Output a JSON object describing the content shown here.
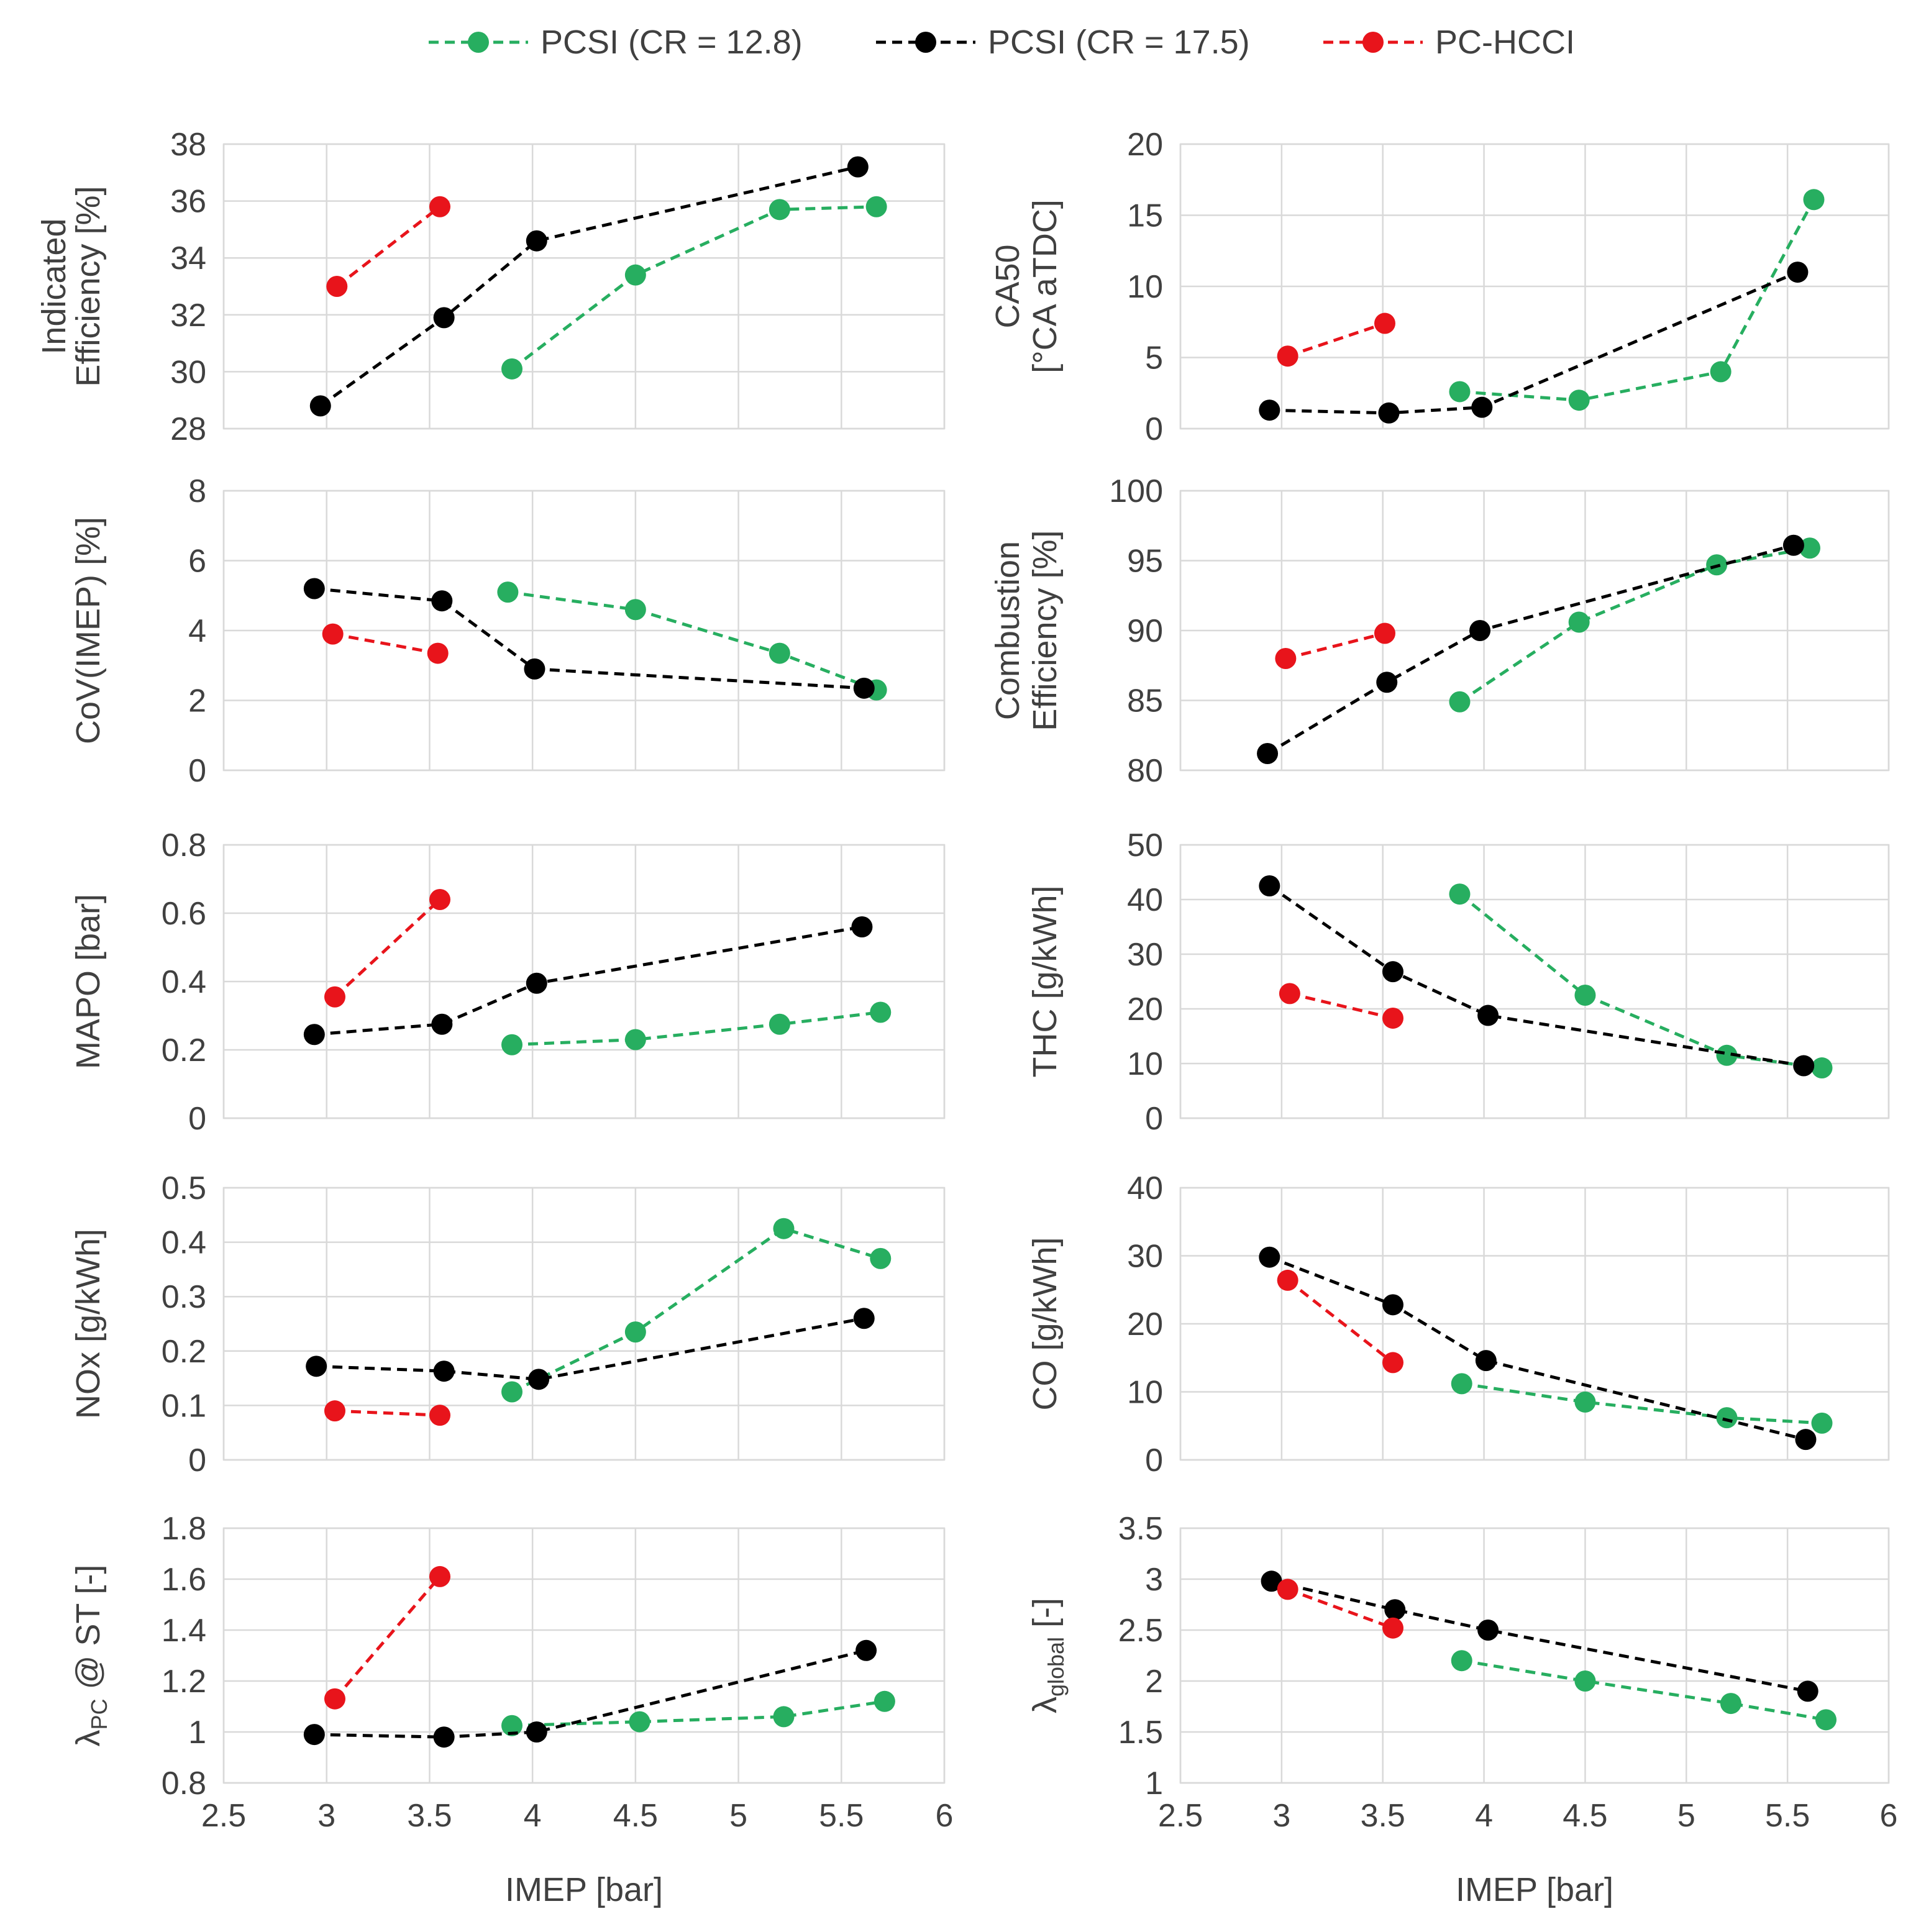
{
  "colors": {
    "green": "#27ae60",
    "black": "#000000",
    "red": "#e8141b"
  },
  "legend": [
    {
      "key": "green",
      "label": "PCSI (CR = 12.8)"
    },
    {
      "key": "black",
      "label": "PCSI (CR = 17.5)"
    },
    {
      "key": "red",
      "label": "PC-HCCI"
    }
  ],
  "chart_data": [
    {
      "type": "line",
      "panel": "top-left",
      "ylim": [
        28,
        38
      ],
      "yticks": [
        "28",
        "30",
        "32",
        "34",
        "36",
        "38"
      ],
      "ylabel": [
        "Indicated",
        "Efficiency [%]"
      ],
      "xlim": [
        2.5,
        6
      ],
      "xticks": [
        "2.5",
        "3",
        "3.5",
        "4",
        "4.5",
        "5",
        "5.5",
        "6"
      ],
      "xlabel": "",
      "series": [
        {
          "name": "PCSI (CR = 12.8)",
          "color": "green",
          "x": [
            3.9,
            4.5,
            5.2,
            5.67
          ],
          "y": [
            30.1,
            33.4,
            35.7,
            35.8
          ]
        },
        {
          "name": "PCSI (CR = 17.5)",
          "color": "black",
          "x": [
            2.97,
            3.57,
            4.02,
            5.58
          ],
          "y": [
            28.8,
            31.9,
            34.6,
            37.2
          ]
        },
        {
          "name": "PC-HCCI",
          "color": "red",
          "x": [
            3.05,
            3.55
          ],
          "y": [
            33.0,
            35.8
          ]
        }
      ]
    },
    {
      "type": "line",
      "panel": "top-right",
      "ylim": [
        0,
        20
      ],
      "yticks": [
        "0",
        "5",
        "10",
        "15",
        "20"
      ],
      "ylabel": [
        "CA50",
        "[°CA aTDC]"
      ],
      "xlim": [
        2.5,
        6
      ],
      "xticks": [
        "2.5",
        "3",
        "3.5",
        "4",
        "4.5",
        "5",
        "5.5",
        "6"
      ],
      "xlabel": "",
      "series": [
        {
          "name": "PCSI (CR = 12.8)",
          "color": "green",
          "x": [
            3.88,
            4.47,
            5.17,
            5.63
          ],
          "y": [
            2.6,
            2.0,
            4.0,
            16.1
          ]
        },
        {
          "name": "PCSI (CR = 17.5)",
          "color": "black",
          "x": [
            2.94,
            3.53,
            3.99,
            5.55
          ],
          "y": [
            1.3,
            1.1,
            1.5,
            11.0
          ]
        },
        {
          "name": "PC-HCCI",
          "color": "red",
          "x": [
            3.03,
            3.51
          ],
          "y": [
            5.1,
            7.4
          ]
        }
      ]
    },
    {
      "type": "line",
      "panel": "row2-left",
      "ylim": [
        0,
        8
      ],
      "yticks": [
        "0",
        "2",
        "4",
        "6",
        "8"
      ],
      "ylabel": [
        "CoV(IMEP) [%]"
      ],
      "xlim": [
        2.5,
        6
      ],
      "xticks": [
        "2.5",
        "3",
        "3.5",
        "4",
        "4.5",
        "5",
        "5.5",
        "6"
      ],
      "xlabel": "",
      "series": [
        {
          "name": "PCSI (CR = 12.8)",
          "color": "green",
          "x": [
            3.88,
            4.5,
            5.2,
            5.67
          ],
          "y": [
            5.1,
            4.6,
            3.35,
            2.3
          ]
        },
        {
          "name": "PCSI (CR = 17.5)",
          "color": "black",
          "x": [
            2.94,
            3.56,
            4.01,
            5.61
          ],
          "y": [
            5.2,
            4.85,
            2.9,
            2.35
          ]
        },
        {
          "name": "PC-HCCI",
          "color": "red",
          "x": [
            3.03,
            3.54
          ],
          "y": [
            3.9,
            3.35
          ]
        }
      ]
    },
    {
      "type": "line",
      "panel": "row2-right",
      "ylim": [
        80,
        100
      ],
      "yticks": [
        "80",
        "85",
        "90",
        "95",
        "100"
      ],
      "ylabel": [
        "Combustion",
        "Efficiency [%]"
      ],
      "xlim": [
        2.5,
        6
      ],
      "xticks": [
        "2.5",
        "3",
        "3.5",
        "4",
        "4.5",
        "5",
        "5.5",
        "6"
      ],
      "xlabel": "",
      "series": [
        {
          "name": "PCSI (CR = 12.8)",
          "color": "green",
          "x": [
            3.88,
            4.47,
            5.15,
            5.61
          ],
          "y": [
            84.9,
            90.6,
            94.7,
            95.9
          ]
        },
        {
          "name": "PCSI (CR = 17.5)",
          "color": "black",
          "x": [
            2.93,
            3.52,
            3.98,
            5.53
          ],
          "y": [
            81.2,
            86.3,
            90.0,
            96.1
          ]
        },
        {
          "name": "PC-HCCI",
          "color": "red",
          "x": [
            3.02,
            3.51
          ],
          "y": [
            88.0,
            89.8
          ]
        }
      ]
    },
    {
      "type": "line",
      "panel": "row3-left",
      "ylim": [
        0,
        0.8
      ],
      "yticks": [
        "0",
        "0.2",
        "0.4",
        "0.6",
        "0.8"
      ],
      "ylabel": [
        "MAPO [bar]"
      ],
      "xlim": [
        2.5,
        6
      ],
      "xticks": [
        "2.5",
        "3",
        "3.5",
        "4",
        "4.5",
        "5",
        "5.5",
        "6"
      ],
      "xlabel": "",
      "series": [
        {
          "name": "PCSI (CR = 12.8)",
          "color": "green",
          "x": [
            3.9,
            4.5,
            5.2,
            5.69
          ],
          "y": [
            0.215,
            0.23,
            0.275,
            0.31
          ]
        },
        {
          "name": "PCSI (CR = 17.5)",
          "color": "black",
          "x": [
            2.94,
            3.56,
            4.02,
            5.6
          ],
          "y": [
            0.245,
            0.275,
            0.395,
            0.56
          ]
        },
        {
          "name": "PC-HCCI",
          "color": "red",
          "x": [
            3.04,
            3.55
          ],
          "y": [
            0.355,
            0.64
          ]
        }
      ]
    },
    {
      "type": "line",
      "panel": "row3-right",
      "ylim": [
        0,
        50
      ],
      "yticks": [
        "0",
        "10",
        "20",
        "30",
        "40",
        "50"
      ],
      "ylabel": [
        "THC [g/kWh]"
      ],
      "xlim": [
        2.5,
        6
      ],
      "xticks": [
        "2.5",
        "3",
        "3.5",
        "4",
        "4.5",
        "5",
        "5.5",
        "6"
      ],
      "xlabel": "",
      "series": [
        {
          "name": "PCSI (CR = 12.8)",
          "color": "green",
          "x": [
            3.88,
            4.5,
            5.2,
            5.67
          ],
          "y": [
            41.0,
            22.5,
            11.5,
            9.2
          ]
        },
        {
          "name": "PCSI (CR = 17.5)",
          "color": "black",
          "x": [
            2.94,
            3.55,
            4.02,
            5.58
          ],
          "y": [
            42.5,
            26.8,
            18.8,
            9.6
          ]
        },
        {
          "name": "PC-HCCI",
          "color": "red",
          "x": [
            3.04,
            3.55
          ],
          "y": [
            22.8,
            18.3
          ]
        }
      ]
    },
    {
      "type": "line",
      "panel": "row4-left",
      "ylim": [
        0,
        0.5
      ],
      "yticks": [
        "0",
        "0.1",
        "0.2",
        "0.3",
        "0.4",
        "0.5"
      ],
      "ylabel": [
        "NOx [g/kWh]"
      ],
      "xlim": [
        2.5,
        6
      ],
      "xticks": [
        "2.5",
        "3",
        "3.5",
        "4",
        "4.5",
        "5",
        "5.5",
        "6"
      ],
      "xlabel": "",
      "series": [
        {
          "name": "PCSI (CR = 12.8)",
          "color": "green",
          "x": [
            3.9,
            4.5,
            5.22,
            5.69
          ],
          "y": [
            0.125,
            0.235,
            0.425,
            0.37
          ]
        },
        {
          "name": "PCSI (CR = 17.5)",
          "color": "black",
          "x": [
            2.95,
            3.57,
            4.03,
            5.61
          ],
          "y": [
            0.172,
            0.163,
            0.148,
            0.26
          ]
        },
        {
          "name": "PC-HCCI",
          "color": "red",
          "x": [
            3.04,
            3.55
          ],
          "y": [
            0.09,
            0.082
          ]
        }
      ]
    },
    {
      "type": "line",
      "panel": "row4-right",
      "ylim": [
        0,
        40
      ],
      "yticks": [
        "0",
        "10",
        "20",
        "30",
        "40"
      ],
      "ylabel": [
        "CO [g/kWh]"
      ],
      "xlim": [
        2.5,
        6
      ],
      "xticks": [
        "2.5",
        "3",
        "3.5",
        "4",
        "4.5",
        "5",
        "5.5",
        "6"
      ],
      "xlabel": "",
      "series": [
        {
          "name": "PCSI (CR = 12.8)",
          "color": "green",
          "x": [
            3.89,
            4.5,
            5.2,
            5.67
          ],
          "y": [
            11.2,
            8.5,
            6.2,
            5.4
          ]
        },
        {
          "name": "PCSI (CR = 17.5)",
          "color": "black",
          "x": [
            2.94,
            3.55,
            4.01,
            5.59
          ],
          "y": [
            29.8,
            22.8,
            14.6,
            3.0
          ]
        },
        {
          "name": "PC-HCCI",
          "color": "red",
          "x": [
            3.03,
            3.55
          ],
          "y": [
            26.4,
            14.3
          ]
        }
      ]
    },
    {
      "type": "line",
      "panel": "bottom-left",
      "ylim": [
        0.8,
        1.8
      ],
      "yticks": [
        "0.8",
        "1",
        "1.2",
        "1.4",
        "1.6",
        "1.8"
      ],
      "ylabel": [
        "λPC @ ST [-]"
      ],
      "xlim": [
        2.5,
        6
      ],
      "xticks": [
        "2.5",
        "3",
        "3.5",
        "4",
        "4.5",
        "5",
        "5.5",
        "6"
      ],
      "xlabel": "IMEP [bar]",
      "series": [
        {
          "name": "PCSI (CR = 12.8)",
          "color": "green",
          "x": [
            3.9,
            4.52,
            5.22,
            5.71
          ],
          "y": [
            1.025,
            1.04,
            1.06,
            1.12
          ]
        },
        {
          "name": "PCSI (CR = 17.5)",
          "color": "black",
          "x": [
            2.94,
            3.57,
            4.02,
            5.62
          ],
          "y": [
            0.99,
            0.98,
            1.0,
            1.32
          ]
        },
        {
          "name": "PC-HCCI",
          "color": "red",
          "x": [
            3.04,
            3.55
          ],
          "y": [
            1.13,
            1.61
          ]
        }
      ]
    },
    {
      "type": "line",
      "panel": "bottom-right",
      "ylim": [
        1,
        3.5
      ],
      "yticks": [
        "1",
        "1.5",
        "2",
        "2.5",
        "3",
        "3.5"
      ],
      "ylabel": [
        "λglobal [-]"
      ],
      "xlim": [
        2.5,
        6
      ],
      "xticks": [
        "2.5",
        "3",
        "3.5",
        "4",
        "4.5",
        "5",
        "5.5",
        "6"
      ],
      "xlabel": "IMEP [bar]",
      "series": [
        {
          "name": "PCSI (CR = 12.8)",
          "color": "green",
          "x": [
            3.89,
            4.5,
            5.22,
            5.69
          ],
          "y": [
            2.2,
            2.0,
            1.78,
            1.62
          ]
        },
        {
          "name": "PCSI (CR = 17.5)",
          "color": "black",
          "x": [
            2.95,
            3.56,
            4.02,
            5.6
          ],
          "y": [
            2.98,
            2.7,
            2.5,
            1.9
          ]
        },
        {
          "name": "PC-HCCI",
          "color": "red",
          "x": [
            3.03,
            3.55
          ],
          "y": [
            2.9,
            2.52
          ]
        }
      ]
    }
  ]
}
